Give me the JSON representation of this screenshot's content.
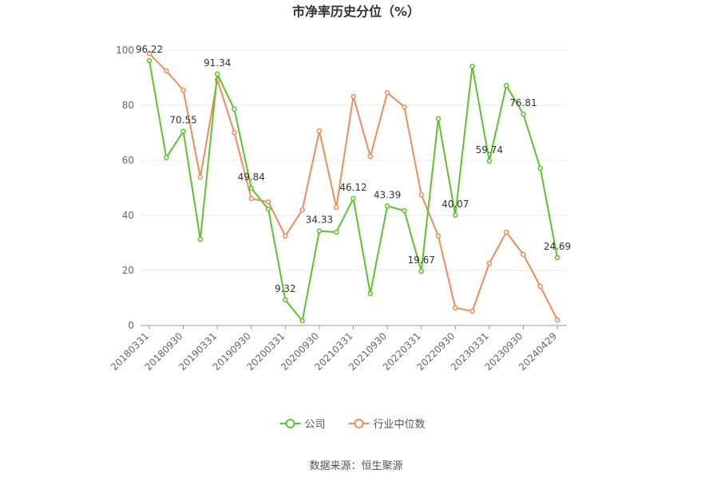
{
  "chart_data": {
    "type": "line",
    "title": "市净率历史分位（%）",
    "source": "数据来源：恒生聚源",
    "categories": [
      "20180331",
      null,
      "20180930",
      null,
      "20190331",
      null,
      "20190930",
      null,
      "20200331",
      null,
      "20200930",
      null,
      "20210331",
      null,
      "20210930",
      null,
      "20220331",
      null,
      "20220930",
      null,
      "20230331",
      null,
      "20230930",
      null,
      "20240429"
    ],
    "series": [
      {
        "name": "公司",
        "color": "#5cc32c",
        "values": [
          96.22,
          61,
          70.55,
          31.3,
          91.34,
          78.6,
          49.84,
          42.3,
          9.32,
          1.7,
          34.33,
          33.9,
          46.12,
          11.6,
          43.39,
          41.7,
          19.67,
          75.1,
          40.07,
          94.2,
          59.74,
          87.2,
          76.81,
          57.1,
          24.69
        ],
        "value_labels": [
          "96.22",
          null,
          "70.55",
          null,
          "91.34",
          null,
          "49.84",
          null,
          "9.32",
          null,
          "34.33",
          null,
          "46.12",
          null,
          "43.39",
          null,
          "19.67",
          null,
          "40.07",
          null,
          "59.74",
          null,
          "76.81",
          null,
          "24.69"
        ]
      },
      {
        "name": "行业中位数",
        "color": "#f08c5c",
        "values": [
          98.8,
          92.5,
          85.5,
          53.9,
          89.3,
          70.1,
          46.1,
          44.9,
          32.5,
          42,
          70.7,
          42.9,
          83.2,
          61.4,
          84.6,
          79.4,
          47.5,
          32.5,
          6.4,
          5.2,
          22.6,
          33.9,
          25.8,
          14.2,
          2
        ]
      }
    ],
    "ylim": [
      0,
      100
    ],
    "yticks": [
      0,
      20,
      40,
      60,
      80,
      100
    ],
    "grid": true,
    "legend": "bottom"
  }
}
